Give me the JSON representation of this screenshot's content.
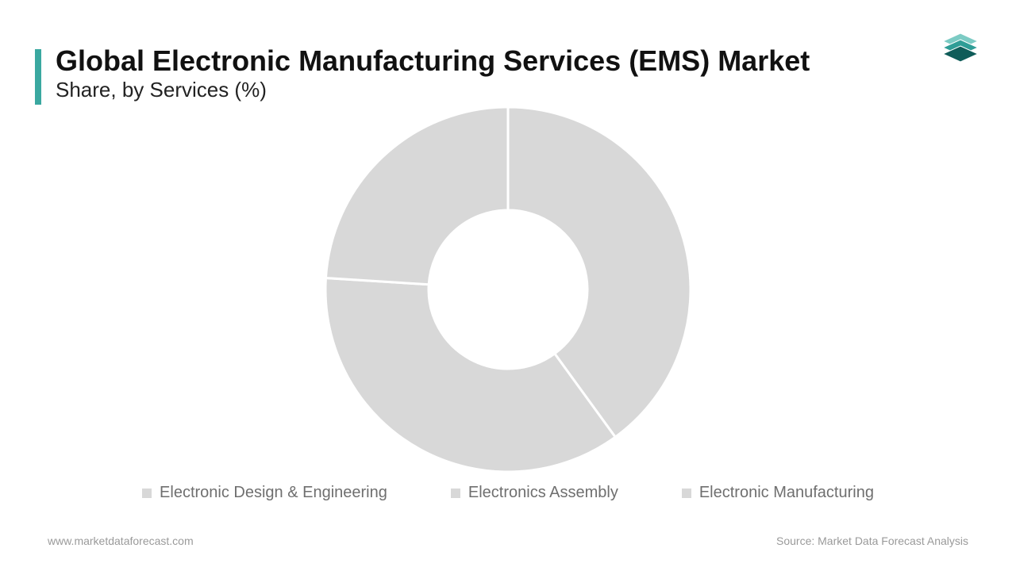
{
  "header": {
    "title": "Global Electronic Manufacturing Services (EMS) Market",
    "subtitle": "Share, by Services (%)",
    "accent_color": "#3aa8a0",
    "title_fontsize": 36,
    "subtitle_fontsize": 26,
    "title_color": "#111111",
    "subtitle_color": "#222222"
  },
  "logo": {
    "layer_colors": [
      "#0f5c59",
      "#2f9d96",
      "#7ccbc4"
    ]
  },
  "chart": {
    "type": "donut",
    "outer_radius": 230,
    "inner_radius": 100,
    "center_fill": "#ffffff",
    "slice_gap_color": "#ffffff",
    "slice_gap_width": 3,
    "start_angle_deg": -90,
    "segments": [
      {
        "label": "Electronics Assembly",
        "value": 40,
        "color": "#d8d8d8"
      },
      {
        "label": "Electronic Manufacturing",
        "value": 36,
        "color": "#d8d8d8"
      },
      {
        "label": "Electronic Design & Engineering",
        "value": 24,
        "color": "#d8d8d8"
      }
    ]
  },
  "legend": {
    "items": [
      {
        "label": "Electronic Design & Engineering",
        "color": "#d8d8d8"
      },
      {
        "label": "Electronics Assembly",
        "color": "#d8d8d8"
      },
      {
        "label": "Electronic Manufacturing",
        "color": "#d8d8d8"
      }
    ],
    "fontsize": 20,
    "text_color": "#6f6f6f",
    "swatch_size": 12
  },
  "footer": {
    "left": "www.marketdataforecast.com",
    "right": "Source: Market Data Forecast Analysis",
    "fontsize": 14,
    "color": "#9a9a9a"
  },
  "background_color": "#ffffff"
}
